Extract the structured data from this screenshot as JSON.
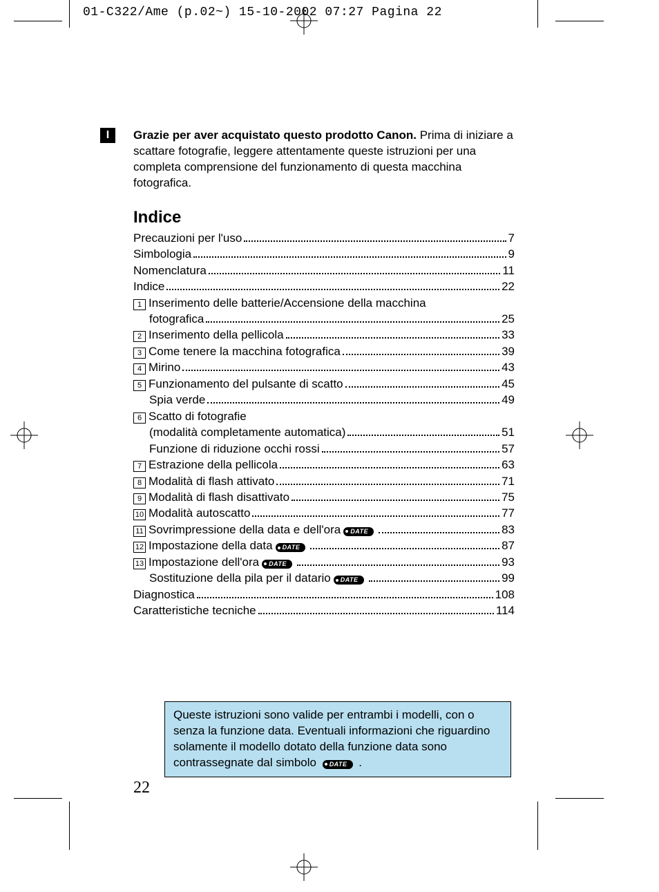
{
  "meta_header": "01-C322/Ame (p.02~)  15-10-2002  07:27  Pagina 22",
  "lang_badge": "I",
  "intro_title": "Grazie per aver acquistato questo prodotto Canon.",
  "intro_body": "Prima di iniziare a scattare fotografie, leggere attentamente queste istruzioni per una completa comprensione del funzionamento di questa macchina fotografica.",
  "indice_heading": "Indice",
  "date_badge_text": "DATE",
  "toc": [
    {
      "num": "",
      "label": "Precauzioni per l'uso",
      "page": "7",
      "indent": false,
      "date": false
    },
    {
      "num": "",
      "label": "Simbologia",
      "page": "9",
      "indent": false,
      "date": false
    },
    {
      "num": "",
      "label": "Nomenclatura",
      "page": "11",
      "indent": false,
      "date": false
    },
    {
      "num": "",
      "label": "Indice",
      "page": "22",
      "indent": false,
      "date": false
    },
    {
      "num": "1",
      "label": "Inserimento delle batterie/Accensione della macchina",
      "page": "",
      "indent": false,
      "date": false,
      "nodots": true
    },
    {
      "num": "",
      "label": "fotografica",
      "page": "25",
      "indent": true,
      "date": false
    },
    {
      "num": "2",
      "label": "Inserimento della pellicola",
      "page": "33",
      "indent": false,
      "date": false
    },
    {
      "num": "3",
      "label": "Come tenere la macchina fotografica",
      "page": "39",
      "indent": false,
      "date": false
    },
    {
      "num": "4",
      "label": "Mirino",
      "page": "43",
      "indent": false,
      "date": false
    },
    {
      "num": "5",
      "label": "Funzionamento del pulsante di scatto",
      "page": "45",
      "indent": false,
      "date": false
    },
    {
      "num": "",
      "label": "Spia verde",
      "page": "49",
      "indent": true,
      "date": false
    },
    {
      "num": "6",
      "label": "Scatto di fotografie",
      "page": "",
      "indent": false,
      "date": false,
      "nodots": true
    },
    {
      "num": "",
      "label": "(modalità completamente automatica)",
      "page": "51",
      "indent": true,
      "date": false
    },
    {
      "num": "",
      "label": "Funzione di riduzione occhi rossi",
      "page": "57",
      "indent": true,
      "date": false
    },
    {
      "num": "7",
      "label": "Estrazione della pellicola",
      "page": "63",
      "indent": false,
      "date": false
    },
    {
      "num": "8",
      "label": "Modalità di flash attivato",
      "page": "71",
      "indent": false,
      "date": false
    },
    {
      "num": "9",
      "label": "Modalità di flash disattivato",
      "page": "75",
      "indent": false,
      "date": false
    },
    {
      "num": "10",
      "label": "Modalità autoscatto",
      "page": "77",
      "indent": false,
      "date": false
    },
    {
      "num": "11",
      "label": "Sovrimpressione della data e dell'ora",
      "page": "83",
      "indent": false,
      "date": true
    },
    {
      "num": "12",
      "label": "Impostazione della data",
      "page": "87",
      "indent": false,
      "date": true
    },
    {
      "num": "13",
      "label": "Impostazione dell'ora",
      "page": "93",
      "indent": false,
      "date": true
    },
    {
      "num": "",
      "label": "Sostituzione della pila per il datario",
      "page": "99",
      "indent": true,
      "date": true
    },
    {
      "num": "",
      "label": "Diagnostica",
      "page": "108",
      "indent": false,
      "date": false
    },
    {
      "num": "",
      "label": "Caratteristiche tecniche",
      "page": "114",
      "indent": false,
      "date": false
    }
  ],
  "note_text_before": "Queste istruzioni sono valide per entrambi i modelli, con o senza la funzione data. Eventuali informazioni che riguardino solamente il modello dotato della funzione data sono contrassegnate dal simbolo ",
  "note_text_after": ".",
  "page_number": "22",
  "colors": {
    "note_bg": "#b8dff0",
    "text": "#000000",
    "bg": "#ffffff"
  }
}
